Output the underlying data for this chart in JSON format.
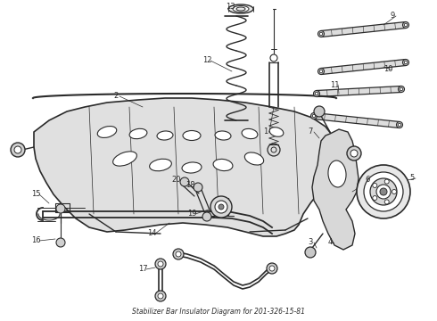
{
  "title": "Stabilizer Bar Insulator Diagram for 201-326-15-81",
  "bg": "#ffffff",
  "lc": "#2a2a2a",
  "fig_w": 4.9,
  "fig_h": 3.6,
  "dpi": 100
}
